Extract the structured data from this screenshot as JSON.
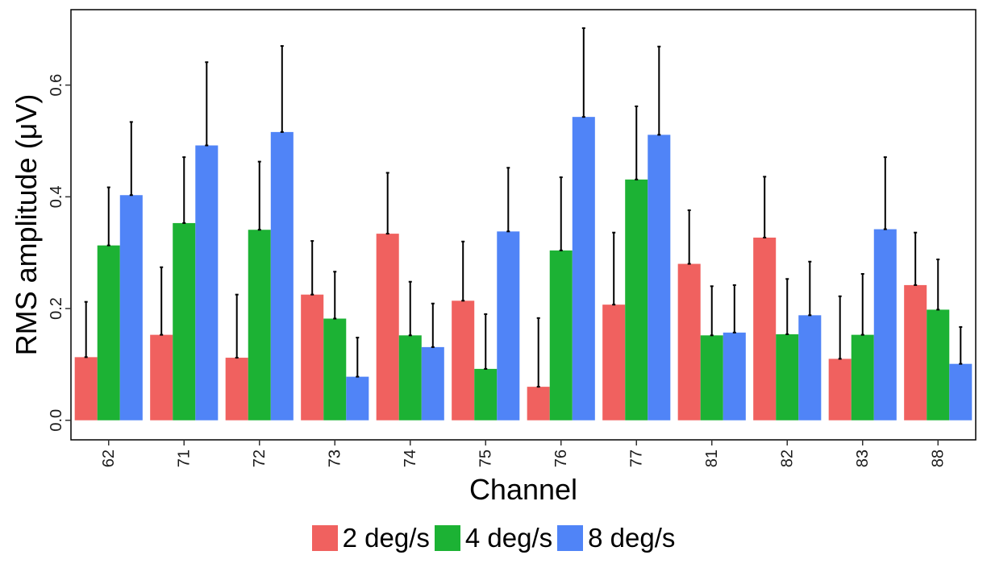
{
  "chart_data": {
    "type": "bar",
    "title": "",
    "xlabel": "Channel",
    "ylabel": "RMS amplitude (μV)",
    "ylim": [
      -0.035,
      0.735
    ],
    "yticks": [
      0.0,
      0.2,
      0.4,
      0.6
    ],
    "ytick_labels": [
      "0.0",
      "0.2",
      "0.4",
      "0.6"
    ],
    "grid": false,
    "legend_position": "bottom",
    "error_bars": "upper",
    "categories": [
      "62",
      "71",
      "72",
      "73",
      "74",
      "75",
      "76",
      "77",
      "81",
      "82",
      "83",
      "88"
    ],
    "series": [
      {
        "name": "2 deg/s",
        "color": "#F0615F",
        "values": [
          0.113,
          0.153,
          0.112,
          0.225,
          0.334,
          0.214,
          0.06,
          0.207,
          0.28,
          0.327,
          0.11,
          0.242
        ],
        "error_upper": [
          0.212,
          0.274,
          0.225,
          0.321,
          0.443,
          0.32,
          0.183,
          0.336,
          0.376,
          0.436,
          0.222,
          0.336
        ]
      },
      {
        "name": "4 deg/s",
        "color": "#1CB234",
        "values": [
          0.313,
          0.353,
          0.341,
          0.182,
          0.152,
          0.092,
          0.304,
          0.431,
          0.152,
          0.154,
          0.153,
          0.198
        ],
        "error_upper": [
          0.417,
          0.471,
          0.463,
          0.266,
          0.248,
          0.19,
          0.435,
          0.562,
          0.24,
          0.253,
          0.262,
          0.288
        ]
      },
      {
        "name": "8 deg/s",
        "color": "#5084F7",
        "values": [
          0.403,
          0.492,
          0.516,
          0.078,
          0.131,
          0.338,
          0.543,
          0.511,
          0.157,
          0.188,
          0.342,
          0.101
        ],
        "error_upper": [
          0.534,
          0.641,
          0.67,
          0.148,
          0.209,
          0.452,
          0.702,
          0.669,
          0.242,
          0.284,
          0.471,
          0.167
        ]
      }
    ]
  }
}
